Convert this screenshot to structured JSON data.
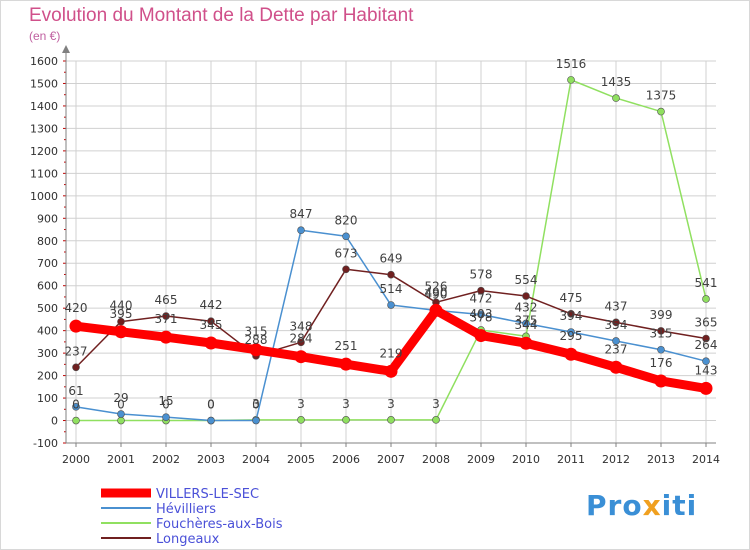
{
  "header": {
    "title": "Evolution du Montant de la Dette par Habitant",
    "unit": "(en €)"
  },
  "logo": {
    "text_part1": "Pro",
    "text_part2": "x",
    "text_part3": "iti"
  },
  "colors": {
    "VILLERS-LE-SEC": "#ff0000",
    "Hévilliers": "#4a90d0",
    "Fouchères-aux-Bois": "#90e060",
    "Longeaux": "#702020",
    "grid": "#d0d0d0",
    "axis": "#808080",
    "tick": "#c00000"
  },
  "chart_data": {
    "type": "line",
    "title": "Evolution du Montant de la Dette par Habitant",
    "ylabel": "(en €)",
    "xlabel": "",
    "ylim": [
      -100,
      1600
    ],
    "yticks": [
      -100,
      0,
      100,
      200,
      300,
      400,
      500,
      600,
      700,
      800,
      900,
      1000,
      1100,
      1200,
      1300,
      1400,
      1500,
      1600
    ],
    "grid": true,
    "legend_position": "bottom-left",
    "x": [
      "2000",
      "2001",
      "2002",
      "2003",
      "2004",
      "2005",
      "2006",
      "2007",
      "2008",
      "2009",
      "2010",
      "2011",
      "2012",
      "2013",
      "2014"
    ],
    "series": [
      {
        "name": "VILLERS-LE-SEC",
        "values": [
          420,
          395,
          371,
          345,
          315,
          284,
          251,
          219,
          490,
          378,
          344,
          295,
          237,
          176,
          143
        ]
      },
      {
        "name": "Hévilliers",
        "values": [
          61,
          29,
          15,
          0,
          0,
          847,
          820,
          514,
          490,
          472,
          432,
          394,
          354,
          315,
          264
        ]
      },
      {
        "name": "Fouchères-aux-Bois",
        "values": [
          0,
          0,
          0,
          0,
          3,
          3,
          3,
          3,
          3,
          403,
          375,
          1516,
          1435,
          1375,
          541
        ]
      },
      {
        "name": "Longeaux",
        "values": [
          237,
          440,
          465,
          442,
          288,
          348,
          673,
          649,
          526,
          578,
          554,
          475,
          437,
          399,
          365
        ]
      }
    ],
    "point_labels": {
      "VILLERS-LE-SEC": [
        "420",
        "395",
        "371",
        "345",
        "315",
        "284",
        "251",
        "219",
        "490",
        "378",
        "344",
        "295",
        "237",
        "176",
        "143"
      ],
      "Hévilliers": [
        "61",
        "29",
        "15",
        "0",
        "0",
        "847",
        "820",
        "514",
        "490",
        "472",
        "432",
        "394",
        "354",
        "315",
        "264"
      ],
      "Fouchères-aux-Bois": [
        "0",
        "0",
        "0",
        "0",
        "3",
        "3",
        "3",
        "3",
        "3",
        "403",
        "375",
        "1516",
        "1435",
        "1375",
        "541"
      ],
      "Longeaux": [
        "237",
        "440",
        "465",
        "442",
        "288",
        "348",
        "673",
        "649",
        "526",
        "578",
        "554",
        "475",
        "437",
        "399",
        "365"
      ]
    }
  }
}
